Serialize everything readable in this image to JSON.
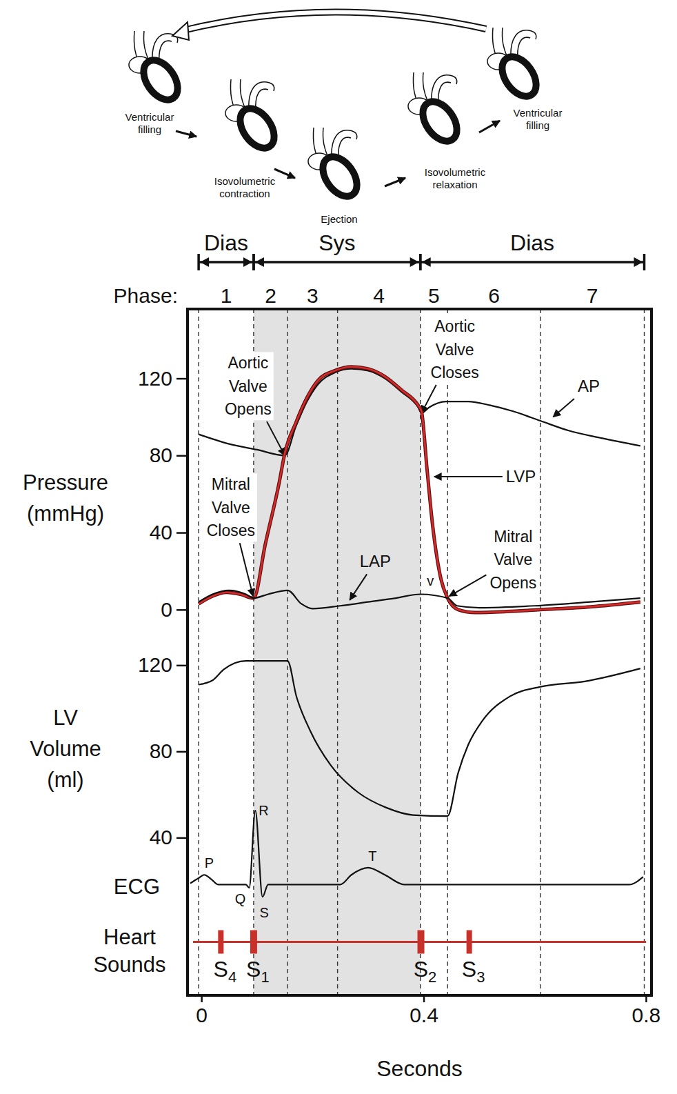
{
  "chart_data": {
    "type": "line",
    "xlabel": "Seconds",
    "xlim": [
      -0.025,
      0.81
    ],
    "xticks": [
      0,
      0.4,
      0.8
    ],
    "illustrations": [
      "Ventricular filling",
      "Isovolumetric contraction",
      "Ejection",
      "Isovolumetric relaxation",
      "Ventricular filling"
    ],
    "periods": [
      {
        "label": "Dias",
        "start": -0.005,
        "end": 0.094
      },
      {
        "label": "Sys",
        "start": 0.094,
        "end": 0.394
      },
      {
        "label": "Dias",
        "start": 0.394,
        "end": 0.797
      }
    ],
    "phase_label": "Phase:",
    "phases": [
      "1",
      "2",
      "3",
      "4",
      "5",
      "6",
      "7"
    ],
    "phase_boundaries": [
      -0.005,
      0.094,
      0.155,
      0.245,
      0.394,
      0.443,
      0.61,
      0.797
    ],
    "shaded": [
      0.094,
      0.394
    ],
    "panels": [
      {
        "type": "line",
        "ylabel": "Pressure (mmHg)",
        "ylim": [
          -4,
          156
        ],
        "yticks": [
          0,
          40,
          80,
          120
        ],
        "series": [
          {
            "name": "AP",
            "color": "#111111",
            "x": [
              -0.005,
              0.05,
              0.1,
              0.15,
              0.17,
              0.19,
              0.21,
              0.24,
              0.27,
              0.3,
              0.33,
              0.36,
              0.39,
              0.396,
              0.41,
              0.44,
              0.48,
              0.52,
              0.56,
              0.61,
              0.66,
              0.72,
              0.79
            ],
            "values": [
              91,
              86,
              83,
              80,
              95,
              108,
              117,
              123,
              125,
              124,
              120,
              113,
              105,
              102,
              105,
              108,
              108,
              106,
              103,
              98,
              93,
              89,
              85
            ],
            "label_at": [
              0.697,
              116
            ],
            "arrow_to": [
              0.633,
              100
            ]
          },
          {
            "name": "LVP",
            "color": "#d42a2a",
            "x": [
              -0.005,
              0.02,
              0.045,
              0.07,
              0.094,
              0.115,
              0.14,
              0.15,
              0.17,
              0.19,
              0.21,
              0.24,
              0.27,
              0.3,
              0.33,
              0.36,
              0.39,
              0.396,
              0.406,
              0.416,
              0.431,
              0.443,
              0.462,
              0.493,
              0.55,
              0.61,
              0.7,
              0.79
            ],
            "values": [
              3,
              7,
              9,
              8,
              6,
              34,
              66,
              81,
              97,
              110,
              119,
              124,
              126,
              125,
              121,
              114,
              106,
              103,
              73,
              44,
              16,
              6,
              0,
              -1.5,
              -1,
              0,
              1.5,
              4
            ],
            "label_at": [
              0.575,
              69
            ],
            "arrow_to": [
              0.419,
              69
            ]
          },
          {
            "name": "LAP",
            "color": "#111111",
            "x": [
              -0.005,
              0.02,
              0.05,
              0.08,
              0.094,
              0.12,
              0.155,
              0.18,
              0.2,
              0.25,
              0.3,
              0.35,
              0.394,
              0.443,
              0.46,
              0.5,
              0.6,
              0.7,
              0.79
            ],
            "values": [
              4,
              8,
              10,
              8,
              6,
              8,
              10,
              3,
              0.5,
              2,
              4,
              6,
              8,
              6,
              2,
              1,
              2,
              4,
              6
            ],
            "label_at": [
              0.313,
              25
            ],
            "arrow_to": [
              0.267,
              5
            ]
          }
        ],
        "annotations": [
          {
            "text": "Aortic Valve Opens",
            "x": 0.084,
            "y": 116,
            "arrow_to": [
              0.15,
              80
            ]
          },
          {
            "text": "Aortic Valve Closes",
            "x": 0.456,
            "y": 135,
            "arrow_to": [
              0.396,
              102
            ]
          },
          {
            "text": "Mitral Valve Closes",
            "x": 0.053,
            "y": 53,
            "arrow_to": [
              0.093,
              7
            ]
          },
          {
            "text": "Mitral Valve Opens",
            "x": 0.561,
            "y": 26,
            "arrow_to": [
              0.446,
              7
            ]
          },
          {
            "text": "v",
            "x": 0.412,
            "y": 15
          }
        ]
      },
      {
        "type": "line",
        "ylabel": "LV Volume (ml)",
        "ylim": [
          35,
          139
        ],
        "yticks": [
          40,
          80,
          120
        ],
        "series": [
          {
            "color": "#111111",
            "x": [
              -0.005,
              0.02,
              0.04,
              0.06,
              0.08,
              0.155,
              0.171,
              0.196,
              0.233,
              0.282,
              0.332,
              0.381,
              0.443,
              0.462,
              0.48,
              0.505,
              0.555,
              0.61,
              0.69,
              0.79
            ],
            "values": [
              111,
              113,
              118,
              121,
              122,
              122,
              105.5,
              89.5,
              73.5,
              61,
              54,
              50.5,
              50,
              70,
              83,
              94,
              105.5,
              110,
              112.5,
              118.5
            ]
          }
        ]
      },
      {
        "type": "line",
        "ylabel": "ECG",
        "ylim": [
          -0.4,
          1.3
        ],
        "tick_labels": false,
        "series": [
          {
            "color": "#111111",
            "x": [
              -0.02,
              -0.005,
              0.005,
              0.018,
              0.03,
              0.08,
              0.086,
              0.097,
              0.11,
              0.12,
              0.25,
              0.27,
              0.3,
              0.33,
              0.365,
              0.77,
              0.795
            ],
            "values": [
              0.02,
              0.1,
              0.15,
              0.08,
              0,
              0,
              -0.05,
              1.14,
              -0.19,
              0,
              0,
              0.15,
              0.26,
              0.15,
              0,
              0,
              0.12
            ]
          }
        ],
        "annotations": [
          {
            "text": "P",
            "x": 0.014,
            "y": 0.33
          },
          {
            "text": "Q",
            "x": 0.07,
            "y": -0.22
          },
          {
            "text": "R",
            "x": 0.112,
            "y": 1.14
          },
          {
            "text": "S",
            "x": 0.113,
            "y": -0.43
          },
          {
            "text": "T",
            "x": 0.308,
            "y": 0.44
          }
        ]
      },
      {
        "type": "event",
        "ylabel": "Heart Sounds",
        "color": "#c8302a",
        "events": [
          {
            "label": "S4",
            "x": 0.035
          },
          {
            "label": "S1",
            "x": 0.094
          },
          {
            "label": "S2",
            "x": 0.395
          },
          {
            "label": "S3",
            "x": 0.482
          }
        ]
      }
    ]
  }
}
